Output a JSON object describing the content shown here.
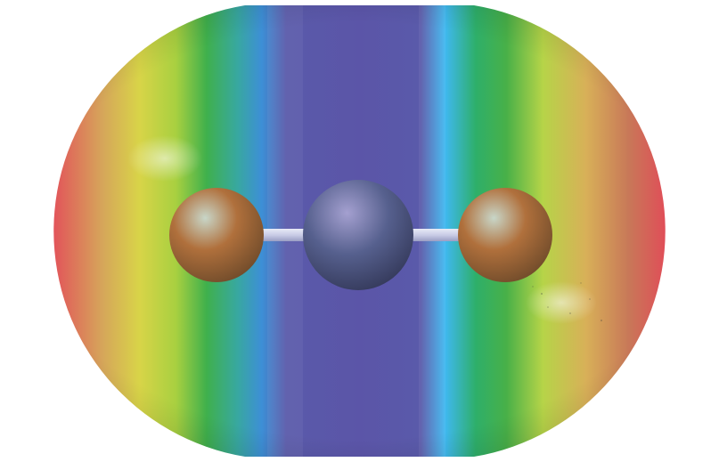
{
  "image": {
    "background": "#ffffff",
    "surface": {
      "kind": "electrostatic-potential-map",
      "gradient_stops": [
        {
          "offset": 0.0,
          "color": "#e2545a"
        },
        {
          "offset": 0.08,
          "color": "#d6a65a"
        },
        {
          "offset": 0.14,
          "color": "#d8d448"
        },
        {
          "offset": 0.2,
          "color": "#a8d040"
        },
        {
          "offset": 0.25,
          "color": "#3fb04c"
        },
        {
          "offset": 0.3,
          "color": "#38a8a0"
        },
        {
          "offset": 0.34,
          "color": "#3d8fd6"
        },
        {
          "offset": 0.38,
          "color": "#5a5aaa"
        },
        {
          "offset": 0.5,
          "color": "#5b55a8"
        },
        {
          "offset": 0.6,
          "color": "#5a5aaa"
        },
        {
          "offset": 0.64,
          "color": "#3fb8f0"
        },
        {
          "offset": 0.69,
          "color": "#2eaf6a"
        },
        {
          "offset": 0.74,
          "color": "#48b048"
        },
        {
          "offset": 0.8,
          "color": "#b6d448"
        },
        {
          "offset": 0.87,
          "color": "#d8b058"
        },
        {
          "offset": 0.94,
          "color": "#c87858"
        },
        {
          "offset": 1.0,
          "color": "#e04e58"
        }
      ]
    },
    "atoms": [
      {
        "role": "outer-atom-left",
        "color": "#b0703c",
        "highlight": "#c8d6c8"
      },
      {
        "role": "central-atom",
        "color": "#56608e",
        "highlight": "#a4a0d0"
      },
      {
        "role": "outer-atom-right",
        "color": "#b0703c",
        "highlight": "#c8d6c8"
      }
    ],
    "bond_color": "#c9cce6"
  }
}
